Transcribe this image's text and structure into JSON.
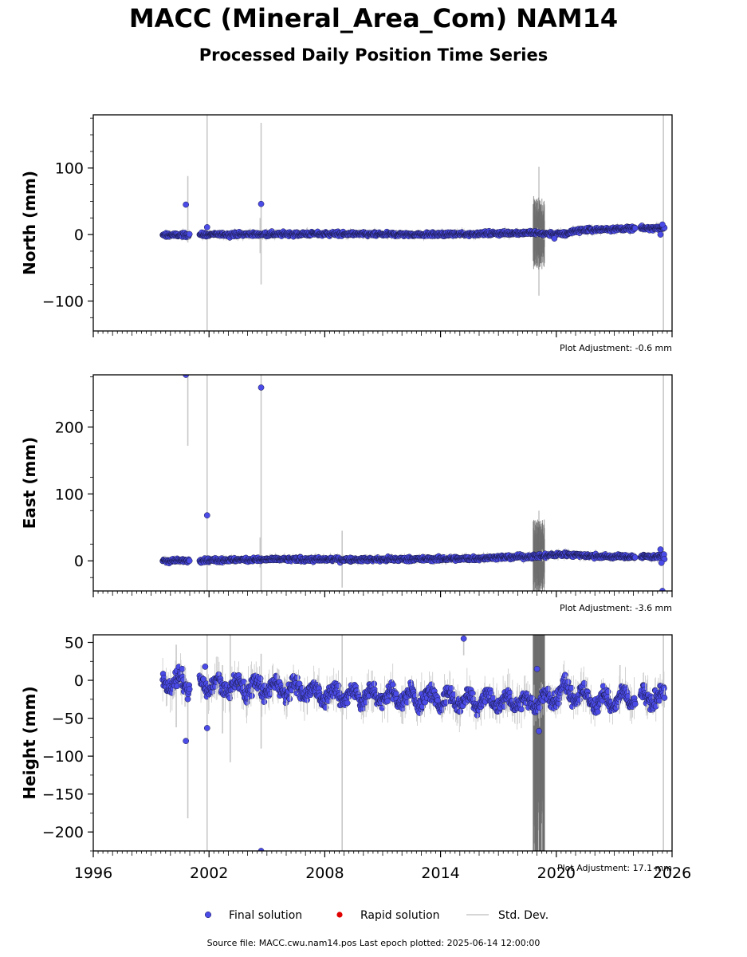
{
  "header": {
    "title": "MACC (Mineral_Area_Com) NAM14",
    "subtitle": "Processed Daily Position Time Series"
  },
  "footer": {
    "source": "Source file: MACC.cwu.nam14.pos  Last epoch plotted: 2025-06-14 12:00:00"
  },
  "colors": {
    "final": "#4b4be8",
    "rapid": "#e00000",
    "stddev": "#c8c8c8",
    "stddev_dense": "#6e6e6e"
  },
  "chart_data": {
    "type": "scatter",
    "x_axis": {
      "range": [
        1996,
        2026
      ],
      "ticks": [
        1996,
        2002,
        2008,
        2014,
        2020,
        2026
      ],
      "tick_labels": [
        "1996",
        "2002",
        "2008",
        "2014",
        "2020",
        "2026"
      ]
    },
    "legend": [
      {
        "label": "Final solution",
        "marker": "circle"
      },
      {
        "label": "Rapid solution",
        "marker": "dot"
      },
      {
        "label": "Std. Dev.",
        "marker": "line"
      }
    ],
    "legend_placement": "bottom-center",
    "panels": [
      {
        "name": "north",
        "ylabel": "North (mm)",
        "ylim": [
          -145,
          180
        ],
        "yticks": [
          -100,
          0,
          100
        ],
        "ytick_labels": [
          "−100",
          "0",
          "100"
        ],
        "adjustment": "Plot Adjustment: -0.6 mm",
        "trend": [
          [
            1999.6,
            -1
          ],
          [
            2002,
            0
          ],
          [
            2008,
            1
          ],
          [
            2014,
            0
          ],
          [
            2018.8,
            3
          ],
          [
            2019.2,
            1
          ],
          [
            2020.5,
            1
          ],
          [
            2021,
            6
          ],
          [
            2023.5,
            9
          ],
          [
            2025.6,
            10
          ]
        ],
        "noise": 2.5,
        "outliers": [
          [
            2000.8,
            45
          ],
          [
            2001.9,
            11
          ],
          [
            2004.7,
            46
          ],
          [
            2019.9,
            -6
          ],
          [
            2025.4,
            0
          ],
          [
            2025.5,
            15
          ]
        ],
        "stddev_spikes": [
          [
            2000.9,
            -12,
            88
          ],
          [
            2001.9,
            -150,
            180
          ],
          [
            2004.7,
            -75,
            168
          ],
          [
            2004.65,
            -28,
            25
          ],
          [
            2019.1,
            -92,
            102
          ],
          [
            2025.55,
            -150,
            180
          ]
        ]
      },
      {
        "name": "east",
        "ylabel": "East (mm)",
        "ylim": [
          -45,
          278
        ],
        "yticks": [
          0,
          100,
          200
        ],
        "ytick_labels": [
          "0",
          "100",
          "200"
        ],
        "adjustment": "Plot Adjustment: -3.6 mm",
        "trend": [
          [
            1999.6,
            0
          ],
          [
            2005,
            2
          ],
          [
            2010,
            2
          ],
          [
            2015,
            3
          ],
          [
            2018,
            6
          ],
          [
            2019.3,
            7
          ],
          [
            2020.5,
            10
          ],
          [
            2022,
            7
          ],
          [
            2024,
            6
          ],
          [
            2025.6,
            7
          ]
        ],
        "noise": 2.5,
        "outliers": [
          [
            2000.8,
            278
          ],
          [
            2001.9,
            68
          ],
          [
            2004.7,
            259
          ],
          [
            2025.4,
            17
          ],
          [
            2025.45,
            -3
          ],
          [
            2025.5,
            -45
          ]
        ],
        "stddev_spikes": [
          [
            2000.9,
            172,
            278
          ],
          [
            2001.9,
            -45,
            278
          ],
          [
            2004.7,
            -45,
            278
          ],
          [
            2004.65,
            -10,
            35
          ],
          [
            2008.9,
            -40,
            45
          ],
          [
            2019.1,
            -45,
            75
          ],
          [
            2025.55,
            -45,
            278
          ]
        ]
      },
      {
        "name": "height",
        "ylabel": "Height (mm)",
        "ylim": [
          -225,
          60
        ],
        "yticks": [
          -200,
          -150,
          -100,
          -50,
          0,
          50
        ],
        "ytick_labels": [
          "−200",
          "−150",
          "−100",
          "−50",
          "0",
          "50"
        ],
        "adjustment": "Plot Adjustment: 17.1 mm",
        "trend": [
          [
            1999.6,
            -2
          ],
          [
            2003,
            -8
          ],
          [
            2006,
            -10
          ],
          [
            2008,
            -18
          ],
          [
            2012,
            -22
          ],
          [
            2016,
            -26
          ],
          [
            2019,
            -30
          ],
          [
            2020.5,
            -12
          ],
          [
            2022,
            -28
          ],
          [
            2025.6,
            -22
          ]
        ],
        "noise": 9,
        "outliers": [
          [
            2000.8,
            -80
          ],
          [
            2001.9,
            -63
          ],
          [
            2001.8,
            18
          ],
          [
            2004.7,
            -225
          ],
          [
            2015.2,
            55
          ],
          [
            2019.0,
            15
          ],
          [
            2019.1,
            -67
          ]
        ],
        "stddev_spikes": [
          [
            2000.9,
            -182,
            0
          ],
          [
            2000.3,
            -62,
            47
          ],
          [
            2001.9,
            -225,
            60
          ],
          [
            2002.7,
            -70,
            20
          ],
          [
            2003.1,
            -108,
            60
          ],
          [
            2004.7,
            -90,
            35
          ],
          [
            2008.9,
            -225,
            60
          ],
          [
            2015.2,
            33,
            55
          ],
          [
            2023.3,
            -30,
            20
          ],
          [
            2025.55,
            -225,
            60
          ]
        ]
      }
    ],
    "dense_stddev_region": [
      2018.8,
      2019.4
    ]
  }
}
